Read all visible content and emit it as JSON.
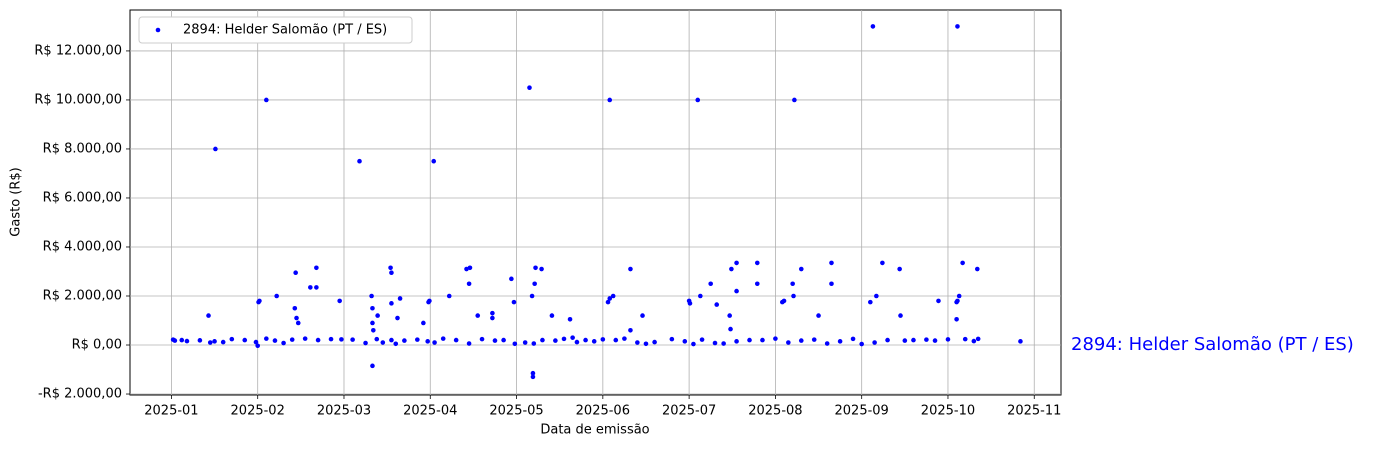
{
  "chart_data": {
    "type": "scatter",
    "y_label": "Gasto (R$)",
    "x_label": "Data de emissão",
    "annotation": "2894: Helder Salomão (PT / ES)",
    "grid": true,
    "legend": "upper left",
    "xlim": [
      0.52,
      11.31
    ],
    "ylim": [
      -2040,
      13670
    ],
    "xticks": [
      {
        "value": 1,
        "label": "2025-01"
      },
      {
        "value": 2,
        "label": "2025-02"
      },
      {
        "value": 3,
        "label": "2025-03"
      },
      {
        "value": 4,
        "label": "2025-04"
      },
      {
        "value": 5,
        "label": "2025-05"
      },
      {
        "value": 6,
        "label": "2025-06"
      },
      {
        "value": 7,
        "label": "2025-07"
      },
      {
        "value": 8,
        "label": "2025-08"
      },
      {
        "value": 9,
        "label": "2025-09"
      },
      {
        "value": 10,
        "label": "2025-10"
      },
      {
        "value": 11,
        "label": "2025-11"
      }
    ],
    "yticks": [
      {
        "value": -2000,
        "label": "-R$ 2.000,00"
      },
      {
        "value": 0,
        "label": "R$ 0,00"
      },
      {
        "value": 2000,
        "label": "R$ 2.000,00"
      },
      {
        "value": 4000,
        "label": "R$ 4.000,00"
      },
      {
        "value": 6000,
        "label": "R$ 6.000,00"
      },
      {
        "value": 8000,
        "label": "R$ 8.000,00"
      },
      {
        "value": 10000,
        "label": "R$ 10.000,00"
      },
      {
        "value": 12000,
        "label": "R$ 12.000,00"
      }
    ],
    "x": [
      1.51,
      2.1,
      3.18,
      4.04,
      5.15,
      6.08,
      7.1,
      8.22,
      9.13,
      10.11,
      1.43,
      2.01,
      2.02,
      2.22,
      2.44,
      2.61,
      2.68,
      2.68,
      2.43,
      2.45,
      2.47,
      2.95,
      3.32,
      3.33,
      3.33,
      3.34,
      3.33,
      3.39,
      3.54,
      3.55,
      3.55,
      3.62,
      3.65,
      3.92,
      3.98,
      3.99,
      4.22,
      4.42,
      4.46,
      4.45,
      4.55,
      4.72,
      4.72,
      4.94,
      4.97,
      5.18,
      5.21,
      5.22,
      5.29,
      5.19,
      5.19,
      5.41,
      5.62,
      6.06,
      6.08,
      6.12,
      6.32,
      6.32,
      6.46,
      7.0,
      7.01,
      7.13,
      7.25,
      7.32,
      7.49,
      7.55,
      7.55,
      7.47,
      7.48,
      7.79,
      7.79,
      8.08,
      8.1,
      8.2,
      8.21,
      8.3,
      8.5,
      8.65,
      8.65,
      9.1,
      9.17,
      9.24,
      9.44,
      9.45,
      9.89,
      10.1,
      10.1,
      10.11,
      10.13,
      10.17,
      10.34,
      10.84,
      1.02,
      1.04,
      1.12,
      1.18,
      1.33,
      1.45,
      1.5,
      1.6,
      1.7,
      1.85,
      1.98,
      2.0,
      2.1,
      2.2,
      2.3,
      2.4,
      2.55,
      2.7,
      2.85,
      2.97,
      3.1,
      3.25,
      3.38,
      3.45,
      3.55,
      3.6,
      3.7,
      3.85,
      3.97,
      4.05,
      4.15,
      4.3,
      4.45,
      4.6,
      4.75,
      4.85,
      4.98,
      5.1,
      5.2,
      5.3,
      5.45,
      5.55,
      5.65,
      5.7,
      5.8,
      5.9,
      6.0,
      6.15,
      6.25,
      6.4,
      6.5,
      6.6,
      6.8,
      6.95,
      7.05,
      7.15,
      7.3,
      7.4,
      7.55,
      7.7,
      7.85,
      8.0,
      8.15,
      8.3,
      8.45,
      8.6,
      8.75,
      8.9,
      9.0,
      9.15,
      9.3,
      9.5,
      9.6,
      9.75,
      9.85,
      10.0,
      10.2,
      10.3,
      10.35
    ],
    "series": [
      {
        "name": "2894: Helder Salomão (PT / ES)",
        "color": "#0000ff",
        "values": [
          8000,
          10000,
          7500,
          7500,
          10500,
          10000,
          10000,
          10000,
          13000,
          13000,
          1200,
          1750,
          1800,
          2000,
          2950,
          2350,
          2350,
          3150,
          1500,
          1100,
          900,
          1800,
          2000,
          1500,
          900,
          600,
          -850,
          1200,
          3150,
          2950,
          1700,
          1100,
          1900,
          900,
          1750,
          1800,
          2000,
          3100,
          3150,
          2500,
          1200,
          1300,
          1100,
          2700,
          1750,
          2000,
          2500,
          3150,
          3100,
          -1150,
          -1300,
          1200,
          1050,
          1750,
          1900,
          2000,
          3100,
          600,
          1200,
          1800,
          1700,
          2000,
          2500,
          1650,
          3100,
          3350,
          2200,
          1200,
          650,
          2500,
          3350,
          1750,
          1800,
          2500,
          2000,
          3100,
          1200,
          3350,
          2500,
          1750,
          2000,
          3350,
          3100,
          1200,
          1800,
          1050,
          1750,
          1800,
          2000,
          3350,
          3100,
          150,
          220,
          180,
          200,
          160,
          190,
          100,
          150,
          120,
          240,
          200,
          120,
          -30,
          260,
          180,
          80,
          220,
          260,
          200,
          240,
          230,
          220,
          80,
          240,
          100,
          200,
          50,
          180,
          220,
          150,
          100,
          260,
          200,
          60,
          240,
          180,
          200,
          50,
          100,
          60,
          200,
          180,
          250,
          300,
          120,
          200,
          150,
          230,
          200,
          260,
          100,
          50,
          120,
          240,
          150,
          40,
          220,
          80,
          60,
          150,
          200,
          200,
          260,
          100,
          180,
          220,
          60,
          150,
          250,
          40,
          100,
          200,
          180,
          200,
          220,
          180,
          230,
          240,
          160,
          250
        ]
      }
    ]
  }
}
